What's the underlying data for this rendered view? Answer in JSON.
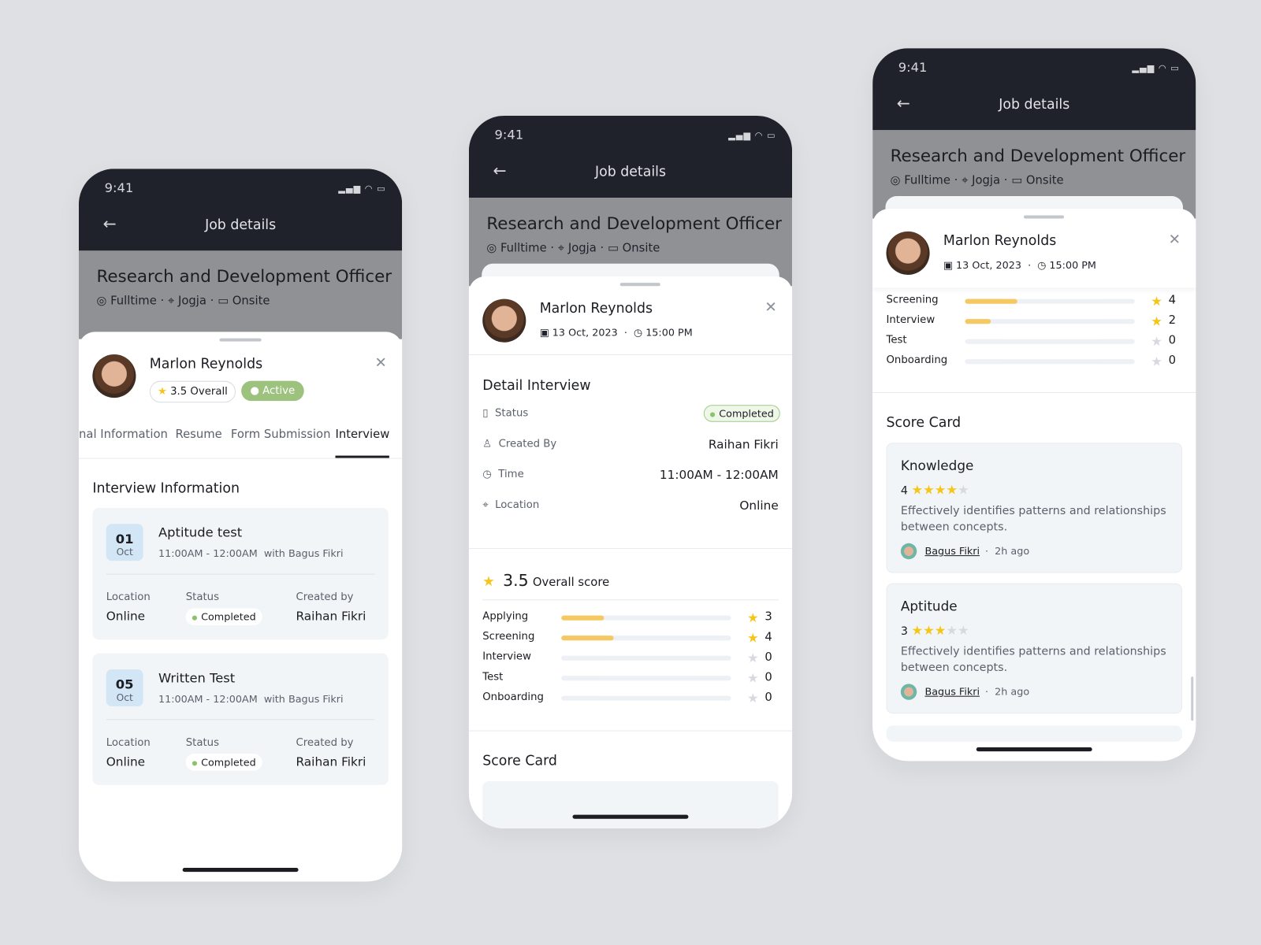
{
  "status_time": "9:41",
  "header": {
    "title": "Job details",
    "back_icon": "arrow-left-icon"
  },
  "job": {
    "title": "Research and Development Officer",
    "type": "Fulltime",
    "location": "Jogja",
    "mode": "Onsite"
  },
  "candidate": {
    "name": "Marlon Reynolds",
    "rating": "3.5 Overall",
    "status": "Active",
    "date": "13 Oct, 2023",
    "time": "15:00 PM"
  },
  "tabs": [
    "nal Information",
    "Resume",
    "Form Submission",
    "Interview"
  ],
  "interview_info": {
    "title": "Interview Information",
    "items": [
      {
        "day": "01",
        "month": "Oct",
        "title": "Aptitude test",
        "time": "11:00AM - 12:00AM",
        "with": "with Bagus Fikri",
        "location_label": "Location",
        "location": "Online",
        "status_label": "Status",
        "status": "Completed",
        "created_label": "Created by",
        "created_by": "Raihan Fikri"
      },
      {
        "day": "05",
        "month": "Oct",
        "title": "Written Test",
        "time": "11:00AM - 12:00AM",
        "with": "with Bagus Fikri",
        "location_label": "Location",
        "location": "Online",
        "status_label": "Status",
        "status": "Completed",
        "created_label": "Created by",
        "created_by": "Raihan Fikri"
      }
    ]
  },
  "detail": {
    "title": "Detail Interview",
    "status_label": "Status",
    "status": "Completed",
    "created_label": "Created By",
    "created_by": "Raihan Fikri",
    "time_label": "Time",
    "time": "11:00AM - 12:00AM",
    "location_label": "Location",
    "location": "Online"
  },
  "overall": {
    "score": "3.5",
    "label": "Overall score"
  },
  "stages_phone2": [
    {
      "name": "Applying",
      "score": "3",
      "fill": 0.25
    },
    {
      "name": "Screening",
      "score": "4",
      "fill": 0.31
    },
    {
      "name": "Interview",
      "score": "0",
      "fill": 0
    },
    {
      "name": "Test",
      "score": "0",
      "fill": 0
    },
    {
      "name": "Onboarding",
      "score": "0",
      "fill": 0
    }
  ],
  "stages_phone3": [
    {
      "name": "Screening",
      "score": "4",
      "fill": 0.31
    },
    {
      "name": "Interview",
      "score": "2",
      "fill": 0.15
    },
    {
      "name": "Test",
      "score": "0",
      "fill": 0
    },
    {
      "name": "Onboarding",
      "score": "0",
      "fill": 0
    }
  ],
  "score_card": {
    "title": "Score Card",
    "items": [
      {
        "title": "Knowledge",
        "score": "4",
        "stars": 4,
        "desc": "Effectively identifies patterns and relationships between concepts.",
        "author": "Bagus Fikri",
        "ago": "2h ago"
      },
      {
        "title": "Aptitude",
        "score": "3",
        "stars": 3,
        "desc": "Effectively identifies patterns and relationships between concepts.",
        "author": "Bagus Fikri",
        "ago": "2h ago"
      }
    ]
  },
  "colors": {
    "dark": "#1f222b",
    "accent_star": "#f5c518",
    "active": "#9cc27e",
    "bar": "#f6c862"
  }
}
